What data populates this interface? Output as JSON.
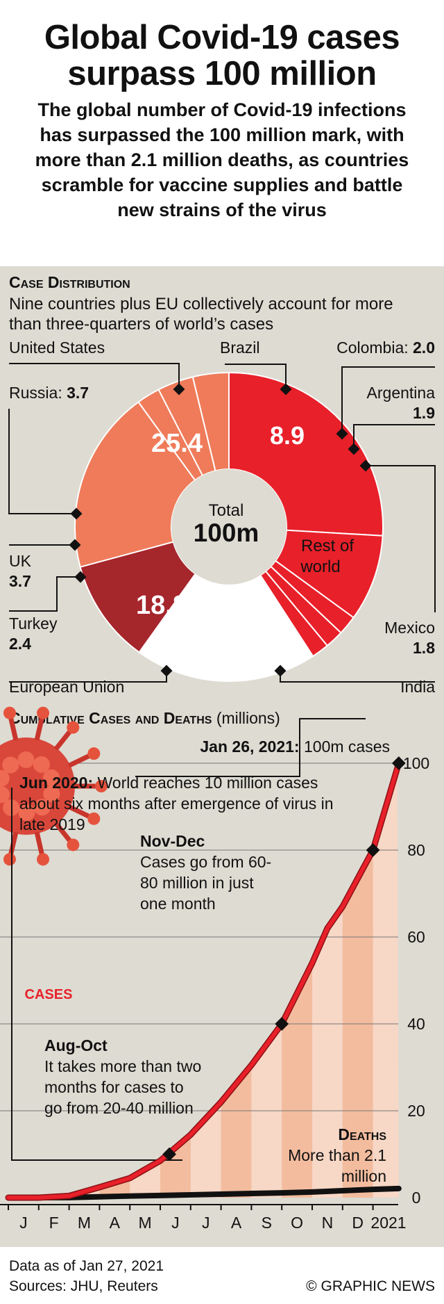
{
  "header": {
    "title": "Global Covid-19 cases surpass 100 million",
    "subtitle": "The global number of Covid-19 infections has surpassed the 100 million mark, with more than 2.1 million deaths, as countries scramble for vaccine supplies and battle new strains of the virus"
  },
  "distribution": {
    "heading": "Case Distribution",
    "description": "Nine countries plus EU collectively account for more than three-quarters of world’s cases",
    "center_label": "Total",
    "center_value": "100m"
  },
  "cumulative": {
    "heading": "Cumulative Cases and Deaths",
    "unit": "(millions)",
    "top_note_bold": "Jan 26, 2021:",
    "top_note": "100m cases",
    "jun_bold": "Jun 2020:",
    "jun_text": "World reaches 10 million cases about six months after emergence of virus in late 2019",
    "novdec_title": "Nov-Dec",
    "novdec_text": "Cases go from 60-80 million in just one month",
    "augoct_title": "Aug-Oct",
    "augoct_text": "It takes more than two months for cases to go from 20-40 million",
    "deaths_title": "Deaths",
    "deaths_text": "More than 2.1 million",
    "cases_label": "CASES"
  },
  "footer": {
    "data_note": "Data as of Jan 27, 2021",
    "sources": "Sources: JHU, Reuters",
    "credit": "© GRAPHIC NEWS"
  },
  "colors": {
    "red": "#e8202a",
    "salmon": "#ef7b5a",
    "maroon": "#a5262b",
    "panel": "#dedbd2",
    "area_fill": "#f7c3a8"
  },
  "chart_data": [
    {
      "type": "pie",
      "title": "Case Distribution",
      "total_label": "100m",
      "slices": [
        {
          "name": "United States",
          "value": 25.4,
          "value_label": "25.4",
          "color": "#e8202a"
        },
        {
          "name": "Brazil",
          "value": 8.9,
          "value_label": "8.9",
          "color": "#e8202a"
        },
        {
          "name": "Colombia",
          "value": 2.0,
          "value_label": "2.0",
          "color": "#e8202a"
        },
        {
          "name": "Argentina",
          "value": 1.9,
          "value_label": "1.9",
          "color": "#e8202a"
        },
        {
          "name": "Mexico",
          "value": 1.8,
          "value_label": "1.8",
          "color": "#e8202a"
        },
        {
          "name": "Rest of world",
          "value": 18.7,
          "value_label": "",
          "color": "#ffffff"
        },
        {
          "name": "India",
          "value": 10.7,
          "value_label": "10.7",
          "color": "#a5262b"
        },
        {
          "name": "European Union",
          "value": 18.8,
          "value_label": "18.8",
          "color": "#ef7b5a"
        },
        {
          "name": "Turkey",
          "value": 2.4,
          "value_label": "2.4",
          "color": "#ef7b5a"
        },
        {
          "name": "UK",
          "value": 3.7,
          "value_label": "3.7",
          "color": "#ef7b5a"
        },
        {
          "name": "Russia",
          "value": 3.7,
          "value_label": "3.7",
          "color": "#ef7b5a"
        }
      ]
    },
    {
      "type": "line",
      "title": "Cumulative Cases and Deaths",
      "ylabel": "(millions)",
      "ylim": [
        0,
        100
      ],
      "yticks": [
        0,
        20,
        40,
        60,
        80,
        100
      ],
      "xticklabels": [
        "J",
        "F",
        "M",
        "A",
        "M",
        "J",
        "J",
        "A",
        "S",
        "O",
        "N",
        "D",
        "2021"
      ],
      "series": [
        {
          "name": "CASES",
          "color": "#e8202a",
          "x": [
            0.0,
            1.0,
            2.0,
            3.0,
            4.0,
            5.0,
            6.0,
            7.0,
            8.0,
            9.0,
            10.0,
            10.5,
            11.0,
            12.0,
            12.85
          ],
          "y": [
            0,
            0,
            0.4,
            2.4,
            4.5,
            8.5,
            14.5,
            22,
            30.5,
            40,
            54,
            62,
            67,
            80,
            100
          ]
        },
        {
          "name": "DEATHS",
          "color": "#111111",
          "x": [
            0.0,
            2.0,
            3.0,
            4.0,
            5.0,
            6.0,
            7.0,
            8.0,
            9.0,
            10.0,
            11.0,
            12.0,
            12.85
          ],
          "y": [
            0,
            0.02,
            0.2,
            0.37,
            0.5,
            0.65,
            0.8,
            0.96,
            1.1,
            1.3,
            1.6,
            1.9,
            2.1
          ]
        }
      ],
      "markers": [
        {
          "x": 5.3,
          "y": 10
        },
        {
          "x": 9.0,
          "y": 40
        },
        {
          "x": 12.0,
          "y": 80
        },
        {
          "x": 12.85,
          "y": 100
        }
      ]
    }
  ]
}
